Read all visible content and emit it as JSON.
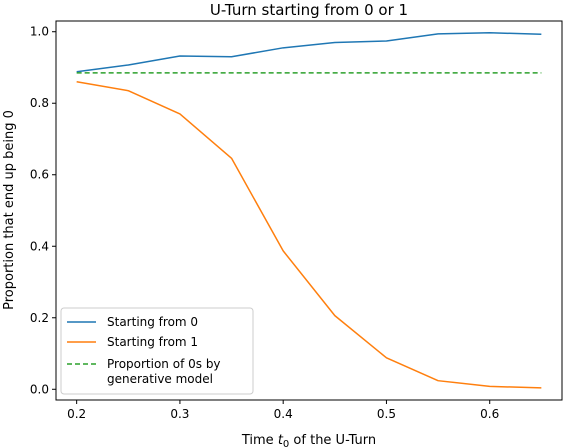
{
  "chart_data": {
    "type": "line",
    "title": "U-Turn starting from 0 or 1",
    "xlabel_prefix": "Time ",
    "xlabel_var": "t",
    "xlabel_sub": "0",
    "xlabel_suffix": " of the U-Turn",
    "ylabel": "Proportion that end up being 0",
    "xlim": [
      0.18,
      0.67
    ],
    "ylim": [
      -0.03,
      1.03
    ],
    "xticks": [
      0.2,
      0.3,
      0.4,
      0.5,
      0.6
    ],
    "xtick_labels": [
      "0.2",
      "0.3",
      "0.4",
      "0.5",
      "0.6"
    ],
    "yticks": [
      0.0,
      0.2,
      0.4,
      0.6,
      0.8,
      1.0
    ],
    "ytick_labels": [
      "0.0",
      "0.2",
      "0.4",
      "0.6",
      "0.8",
      "1.0"
    ],
    "grid": false,
    "legend_position": "lower-left",
    "series": [
      {
        "name": "Starting from 0",
        "color": "#1f77b4",
        "style": "solid",
        "x": [
          0.2,
          0.25,
          0.3,
          0.35,
          0.4,
          0.45,
          0.5,
          0.55,
          0.6,
          0.65
        ],
        "y": [
          0.888,
          0.907,
          0.932,
          0.93,
          0.955,
          0.97,
          0.974,
          0.994,
          0.997,
          0.993
        ]
      },
      {
        "name": "Starting from 1",
        "color": "#ff7f0e",
        "style": "solid",
        "x": [
          0.2,
          0.25,
          0.3,
          0.35,
          0.4,
          0.45,
          0.5,
          0.55,
          0.6,
          0.65
        ],
        "y": [
          0.86,
          0.835,
          0.77,
          0.646,
          0.387,
          0.206,
          0.088,
          0.024,
          0.008,
          0.004
        ]
      },
      {
        "name": "Proportion of 0s by\ngenerative model",
        "color": "#2ca02c",
        "style": "dashed",
        "x": [
          0.2,
          0.65
        ],
        "y": [
          0.885,
          0.885
        ]
      }
    ]
  }
}
